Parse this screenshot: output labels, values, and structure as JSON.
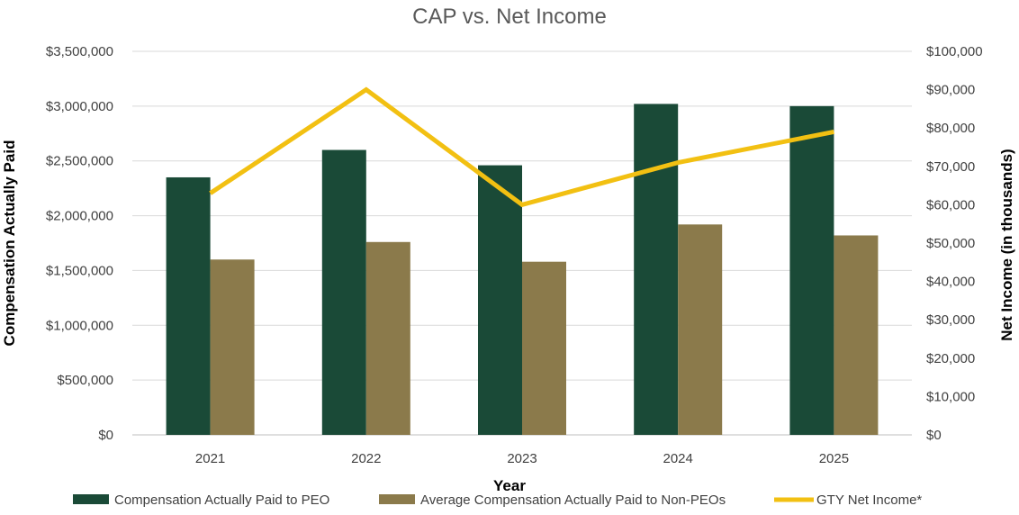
{
  "chart_data": {
    "type": "bar",
    "title": "CAP vs. Net Income",
    "xlabel": "Year",
    "ylabel": "Compensation Actually Paid",
    "y2label": "Net Income (in thousands)",
    "categories": [
      "2021",
      "2022",
      "2023",
      "2024",
      "2025"
    ],
    "ylim": [
      0,
      3500000
    ],
    "y_ticks": [
      0,
      500000,
      1000000,
      1500000,
      2000000,
      2500000,
      3000000,
      3500000
    ],
    "y_tick_labels": [
      "$0",
      "$500,000",
      "$1,000,000",
      "$1,500,000",
      "$2,000,000",
      "$2,500,000",
      "$3,000,000",
      "$3,500,000"
    ],
    "y2lim": [
      0,
      100000
    ],
    "y2_ticks": [
      0,
      10000,
      20000,
      30000,
      40000,
      50000,
      60000,
      70000,
      80000,
      90000,
      100000
    ],
    "y2_tick_labels": [
      "$0",
      "$10,000",
      "$20,000",
      "$30,000",
      "$40,000",
      "$50,000",
      "$60,000",
      "$70,000",
      "$80,000",
      "$90,000",
      "$100,000"
    ],
    "grid": true,
    "legend_position": "bottom",
    "series": [
      {
        "name": "Compensation Actually Paid to PEO",
        "type": "bar",
        "axis": "left",
        "color": "#1a4a37",
        "values": [
          2350000,
          2600000,
          2460000,
          3020000,
          3000000
        ]
      },
      {
        "name": "Average Compensation Actually Paid to Non-PEOs",
        "type": "bar",
        "axis": "left",
        "color": "#8b7a4b",
        "values": [
          1600000,
          1760000,
          1580000,
          1920000,
          1820000
        ]
      },
      {
        "name": "GTY Net Income*",
        "type": "line",
        "axis": "right",
        "color": "#f2c012",
        "values": [
          63000,
          90000,
          60000,
          71000,
          79000
        ]
      }
    ]
  }
}
